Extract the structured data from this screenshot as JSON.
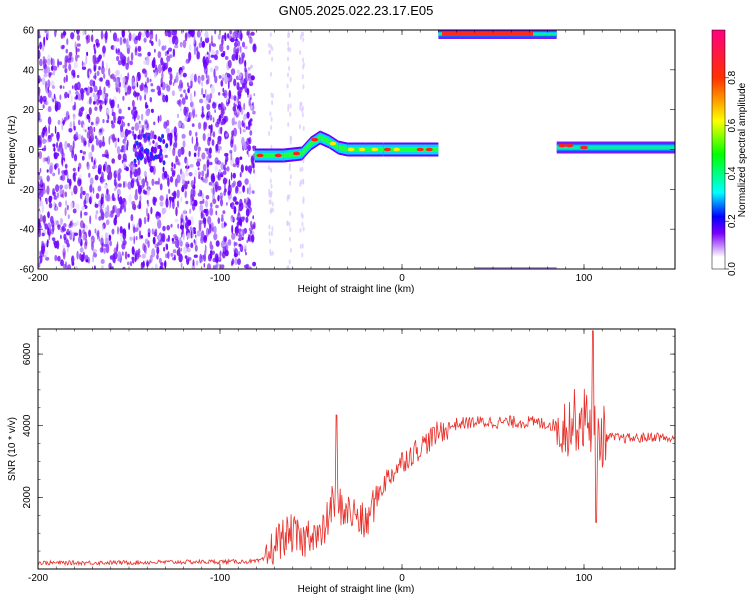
{
  "title": "GN05.2025.022.23.17.E05",
  "chart_data": [
    {
      "type": "heatmap",
      "xlabel": "Height of straight line (km)",
      "ylabel": "Frequency (Hz)",
      "xlim": [
        -200,
        150
      ],
      "ylim": [
        -60,
        60
      ],
      "x_ticks": [
        -200,
        -100,
        0,
        100
      ],
      "y_ticks": [
        -60,
        -40,
        -20,
        0,
        20,
        40,
        60
      ],
      "colorbar": {
        "label": "Normalized spectral amplitude",
        "range": [
          0.0,
          1.0
        ],
        "ticks": [
          0.0,
          0.2,
          0.4,
          0.6,
          0.8
        ],
        "colors": [
          "#ffffff",
          "#7b00ff",
          "#0000ff",
          "#00ffff",
          "#00ff00",
          "#ffff00",
          "#ff0000",
          "#ff0080"
        ]
      },
      "regions": [
        {
          "x_range": [
            -200,
            -81
          ],
          "description": "broadband noise, amplitude 0.0-0.2"
        },
        {
          "x_range": [
            -81,
            20
          ],
          "frequency_center": [
            -3,
            0
          ],
          "amplitude_peak": 0.95
        },
        {
          "x_range": [
            20,
            85
          ],
          "frequency_center": 58,
          "amplitude_peak": 0.95
        },
        {
          "x_range": [
            85,
            150
          ],
          "frequency_center": 1,
          "amplitude_peak": 0.9
        }
      ]
    },
    {
      "type": "line",
      "xlabel": "Height of straight line (km)",
      "ylabel": "SNR (10 * v/v)",
      "xlim": [
        -200,
        150
      ],
      "ylim": [
        0,
        6700
      ],
      "x_ticks": [
        -200,
        -100,
        0,
        100
      ],
      "y_ticks": [
        2000,
        4000,
        6000
      ],
      "series": [
        {
          "color": "#e8302a",
          "x": [
            -200,
            -150,
            -110,
            -80,
            -74,
            -70,
            -65,
            -60,
            -55,
            -50,
            -45,
            -40,
            -38,
            -35,
            -30,
            -25,
            -20,
            -15,
            -10,
            -5,
            0,
            5,
            10,
            15,
            20,
            25,
            30,
            40,
            50,
            60,
            70,
            80,
            85,
            90,
            95,
            100,
            103,
            106,
            108,
            110,
            120,
            130,
            140,
            150
          ],
          "y": [
            170,
            180,
            200,
            210,
            300,
            700,
            900,
            1000,
            700,
            1100,
            800,
            1500,
            1900,
            1800,
            1600,
            1500,
            1200,
            1900,
            2400,
            2700,
            3000,
            3200,
            3400,
            3600,
            3800,
            3950,
            4050,
            4100,
            4100,
            4100,
            4100,
            4050,
            4000,
            4000,
            4150,
            4200,
            4200,
            3800,
            3700,
            3700,
            3650,
            3650,
            3700,
            3600
          ]
        }
      ],
      "annotations": [
        {
          "x": -36,
          "y": 4300,
          "note": "spike"
        },
        {
          "x": 105,
          "y": 6650,
          "note": "max spike"
        },
        {
          "x": 106,
          "y": 1300,
          "note": "min dip"
        }
      ]
    }
  ]
}
